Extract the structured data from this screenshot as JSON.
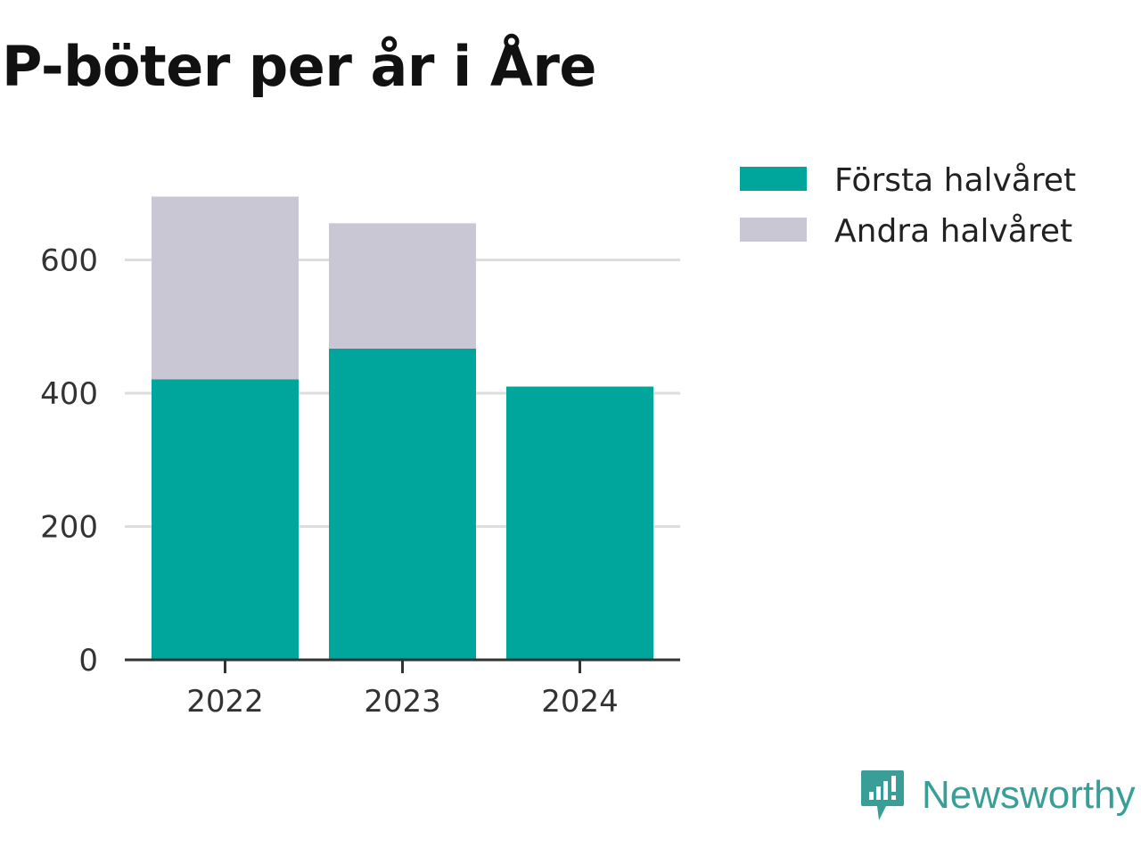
{
  "title": "P-böter per år i Åre",
  "brand": {
    "name": "Newsworthy",
    "icon": "newsworthy-logo-icon",
    "color": "#3a9e98"
  },
  "chart_data": {
    "type": "bar",
    "stacked": true,
    "categories": [
      "2022",
      "2023",
      "2024"
    ],
    "series": [
      {
        "name": "Första halvåret",
        "color": "#00a59b",
        "values": [
          421,
          467,
          410
        ]
      },
      {
        "name": "Andra halvåret",
        "color": "#c8c7d3",
        "values": [
          274,
          188,
          0
        ]
      }
    ],
    "y_ticks": [
      "0",
      "200",
      "400",
      "600"
    ],
    "ylim": [
      0,
      700
    ],
    "grid": true,
    "legend_position": "top-right"
  }
}
